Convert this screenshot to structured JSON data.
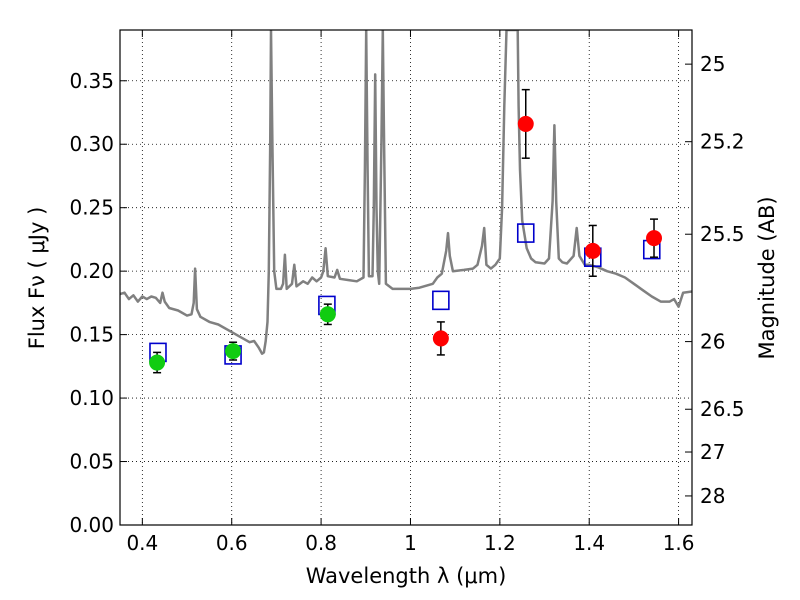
{
  "chart_data": {
    "type": "scatter",
    "xlabel": "Wavelength  λ (μm)",
    "ylabel": "Flux  Fν  ( μJy )",
    "ylabel_right": "Magnitude (AB)",
    "xlim": [
      0.35,
      1.63
    ],
    "ylim": [
      0.0,
      0.39
    ],
    "grid": true,
    "x_ticks": [
      0.4,
      0.6,
      0.8,
      1.0,
      1.2,
      1.4,
      1.6
    ],
    "x_tick_labels": [
      "0.4",
      "0.6",
      "0.8",
      "1",
      "1.2",
      "1.4",
      "1.6"
    ],
    "y_ticks": [
      0.0,
      0.05,
      0.1,
      0.15,
      0.2,
      0.25,
      0.3,
      0.35
    ],
    "y_tick_labels": [
      "0.00",
      "0.05",
      "0.10",
      "0.15",
      "0.20",
      "0.25",
      "0.30",
      "0.35"
    ],
    "right_ticks": [
      {
        "label": "25",
        "flux": 0.3631
      },
      {
        "label": "25.2",
        "flux": 0.302
      },
      {
        "label": "25.5",
        "flux": 0.2291
      },
      {
        "label": "26",
        "flux": 0.1445
      },
      {
        "label": "26.5",
        "flux": 0.0912
      },
      {
        "label": "27",
        "flux": 0.0575
      },
      {
        "label": "28",
        "flux": 0.0229
      }
    ],
    "series": [
      {
        "marker": "line",
        "color": "#808080",
        "points": [
          [
            0.35,
            0.182
          ],
          [
            0.36,
            0.183
          ],
          [
            0.37,
            0.178
          ],
          [
            0.38,
            0.181
          ],
          [
            0.39,
            0.176
          ],
          [
            0.4,
            0.18
          ],
          [
            0.41,
            0.178
          ],
          [
            0.42,
            0.18
          ],
          [
            0.43,
            0.179
          ],
          [
            0.44,
            0.175
          ],
          [
            0.445,
            0.183
          ],
          [
            0.45,
            0.176
          ],
          [
            0.46,
            0.171
          ],
          [
            0.48,
            0.169
          ],
          [
            0.5,
            0.165
          ],
          [
            0.51,
            0.166
          ],
          [
            0.515,
            0.175
          ],
          [
            0.518,
            0.202
          ],
          [
            0.522,
            0.17
          ],
          [
            0.53,
            0.164
          ],
          [
            0.55,
            0.16
          ],
          [
            0.57,
            0.158
          ],
          [
            0.6,
            0.152
          ],
          [
            0.62,
            0.148
          ],
          [
            0.64,
            0.144
          ],
          [
            0.65,
            0.145
          ],
          [
            0.66,
            0.14
          ],
          [
            0.668,
            0.135
          ],
          [
            0.672,
            0.136
          ],
          [
            0.676,
            0.145
          ],
          [
            0.68,
            0.16
          ],
          [
            0.683,
            0.2
          ],
          [
            0.686,
            0.3
          ],
          [
            0.688,
            0.39
          ],
          [
            0.691,
            0.3
          ],
          [
            0.695,
            0.2
          ],
          [
            0.7,
            0.186
          ],
          [
            0.71,
            0.186
          ],
          [
            0.715,
            0.19
          ],
          [
            0.719,
            0.213
          ],
          [
            0.723,
            0.186
          ],
          [
            0.735,
            0.19
          ],
          [
            0.74,
            0.205
          ],
          [
            0.745,
            0.188
          ],
          [
            0.76,
            0.192
          ],
          [
            0.77,
            0.19
          ],
          [
            0.78,
            0.195
          ],
          [
            0.79,
            0.192
          ],
          [
            0.8,
            0.195
          ],
          [
            0.805,
            0.2
          ],
          [
            0.81,
            0.218
          ],
          [
            0.815,
            0.196
          ],
          [
            0.83,
            0.195
          ],
          [
            0.836,
            0.201
          ],
          [
            0.842,
            0.194
          ],
          [
            0.86,
            0.193
          ],
          [
            0.88,
            0.192
          ],
          [
            0.895,
            0.195
          ],
          [
            0.898,
            0.28
          ],
          [
            0.901,
            0.39
          ],
          [
            0.904,
            0.28
          ],
          [
            0.907,
            0.196
          ],
          [
            0.915,
            0.196
          ],
          [
            0.918,
            0.25
          ],
          [
            0.921,
            0.355
          ],
          [
            0.924,
            0.25
          ],
          [
            0.927,
            0.2
          ],
          [
            0.93,
            0.19
          ],
          [
            0.935,
            0.3
          ],
          [
            0.938,
            0.39
          ],
          [
            0.941,
            0.3
          ],
          [
            0.945,
            0.19
          ],
          [
            0.96,
            0.186
          ],
          [
            1.0,
            0.186
          ],
          [
            1.02,
            0.187
          ],
          [
            1.05,
            0.19
          ],
          [
            1.06,
            0.195
          ],
          [
            1.07,
            0.198
          ],
          [
            1.08,
            0.216
          ],
          [
            1.084,
            0.23
          ],
          [
            1.088,
            0.212
          ],
          [
            1.095,
            0.2
          ],
          [
            1.12,
            0.201
          ],
          [
            1.14,
            0.202
          ],
          [
            1.15,
            0.205
          ],
          [
            1.16,
            0.22
          ],
          [
            1.165,
            0.234
          ],
          [
            1.17,
            0.205
          ],
          [
            1.18,
            0.202
          ],
          [
            1.19,
            0.205
          ],
          [
            1.2,
            0.21
          ],
          [
            1.205,
            0.25
          ],
          [
            1.21,
            0.33
          ],
          [
            1.215,
            0.39
          ],
          [
            1.24,
            0.39
          ],
          [
            1.242,
            0.33
          ],
          [
            1.245,
            0.28
          ],
          [
            1.25,
            0.24
          ],
          [
            1.26,
            0.218
          ],
          [
            1.27,
            0.21
          ],
          [
            1.28,
            0.207
          ],
          [
            1.3,
            0.206
          ],
          [
            1.31,
            0.21
          ],
          [
            1.318,
            0.255
          ],
          [
            1.322,
            0.315
          ],
          [
            1.326,
            0.255
          ],
          [
            1.332,
            0.21
          ],
          [
            1.34,
            0.207
          ],
          [
            1.35,
            0.206
          ],
          [
            1.365,
            0.212
          ],
          [
            1.372,
            0.234
          ],
          [
            1.378,
            0.212
          ],
          [
            1.39,
            0.205
          ],
          [
            1.4,
            0.205
          ],
          [
            1.42,
            0.203
          ],
          [
            1.44,
            0.2
          ],
          [
            1.46,
            0.198
          ],
          [
            1.48,
            0.195
          ],
          [
            1.5,
            0.19
          ],
          [
            1.52,
            0.185
          ],
          [
            1.54,
            0.18
          ],
          [
            1.56,
            0.176
          ],
          [
            1.58,
            0.176
          ],
          [
            1.59,
            0.178
          ],
          [
            1.6,
            0.172
          ],
          [
            1.61,
            0.183
          ],
          [
            1.63,
            0.184
          ]
        ]
      },
      {
        "marker": "open-square",
        "color": "#0000cc",
        "points": [
          [
            0.435,
            0.136
          ],
          [
            0.603,
            0.134
          ],
          [
            0.813,
            0.173
          ],
          [
            1.068,
            0.177
          ],
          [
            1.258,
            0.23
          ],
          [
            1.408,
            0.211
          ],
          [
            1.54,
            0.217
          ]
        ]
      },
      {
        "marker": "filled-circle",
        "color": "#11cc11",
        "points": [
          [
            0.433,
            0.128,
            0.008
          ],
          [
            0.603,
            0.137,
            0.007
          ],
          [
            0.815,
            0.166,
            0.008
          ]
        ]
      },
      {
        "marker": "filled-circle",
        "color": "#ff0000",
        "points": [
          [
            1.068,
            0.147,
            0.013
          ],
          [
            1.258,
            0.316,
            0.027
          ],
          [
            1.408,
            0.216,
            0.02
          ],
          [
            1.545,
            0.226,
            0.015
          ]
        ]
      }
    ]
  }
}
